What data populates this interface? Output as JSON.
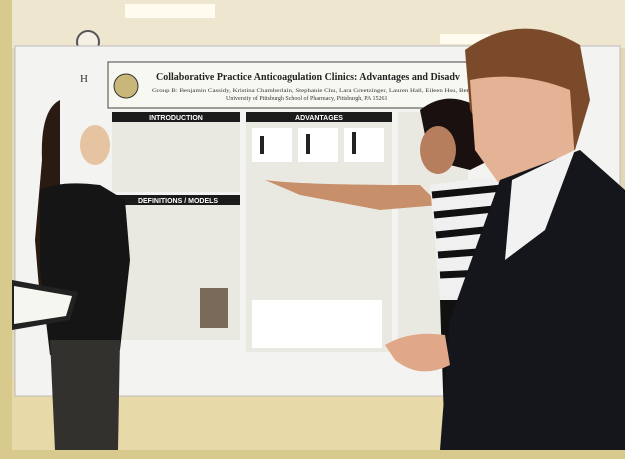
{
  "poster": {
    "label": "H",
    "title": "Collaborative Practice Anticoagulation Clinics: Advantages and Disadv",
    "authors": "Group B: Benjamin Cassidy, Kristina Chamberlain, Stephanie Chu, Lara Greetzinger, Lauren Hall, Eileen Hsu, Beth",
    "affiliation": "University of Pittsburgh School of Pharmacy, Pittsburgh, PA 15261",
    "sections": [
      "INTRODUCTION",
      "ADVANTAGES",
      "DEFINITIONS / MODELS"
    ]
  }
}
